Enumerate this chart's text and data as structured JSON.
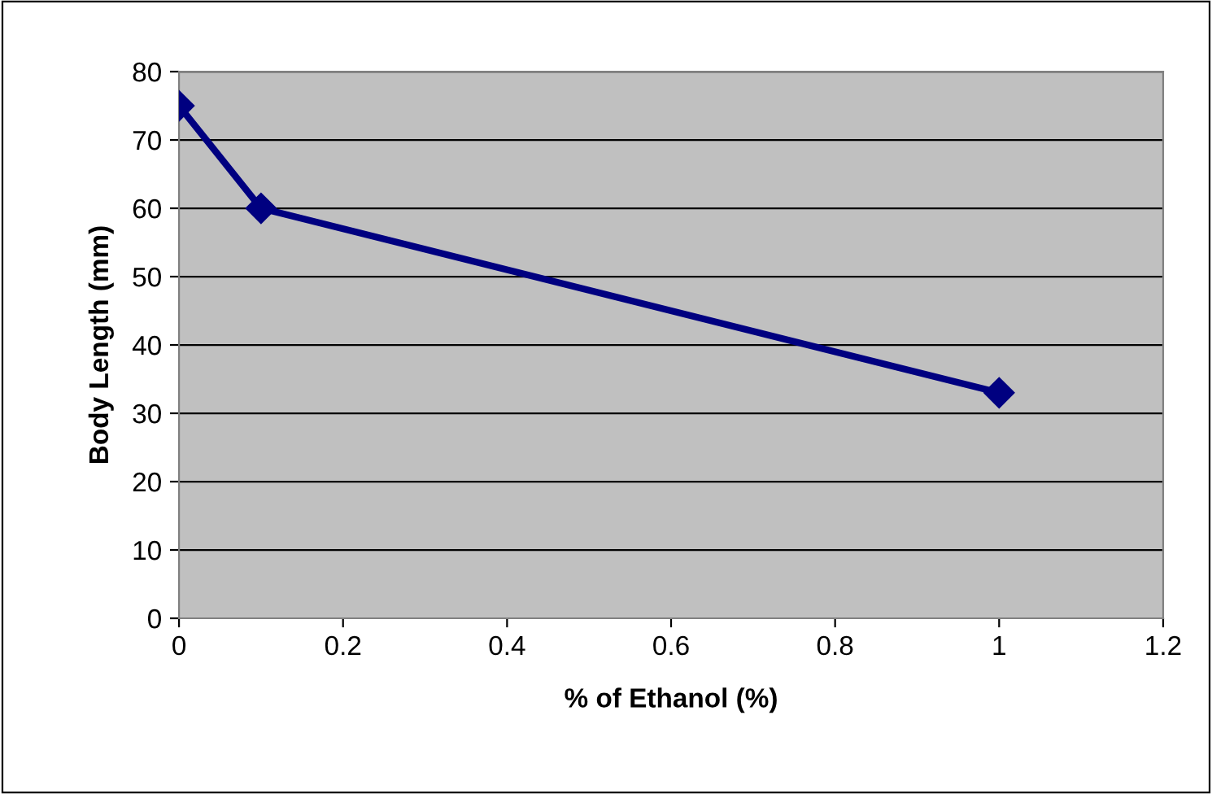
{
  "chart_data": {
    "type": "line",
    "xlabel": "% of Ethanol (%)",
    "ylabel": "Body Length (mm)",
    "x": [
      0,
      0.1,
      1
    ],
    "series": [
      {
        "color": "#000080",
        "values": [
          75,
          60,
          33
        ]
      }
    ],
    "xlim": [
      0,
      1.2
    ],
    "xticks": [
      0,
      0.2,
      0.4,
      0.6,
      0.8,
      1,
      1.2
    ],
    "ylim": [
      0,
      80
    ],
    "yticks": [
      0,
      10,
      20,
      30,
      40,
      50,
      60,
      70,
      80
    ],
    "grid": "y",
    "marker": "diamond",
    "line_style": "solid"
  }
}
